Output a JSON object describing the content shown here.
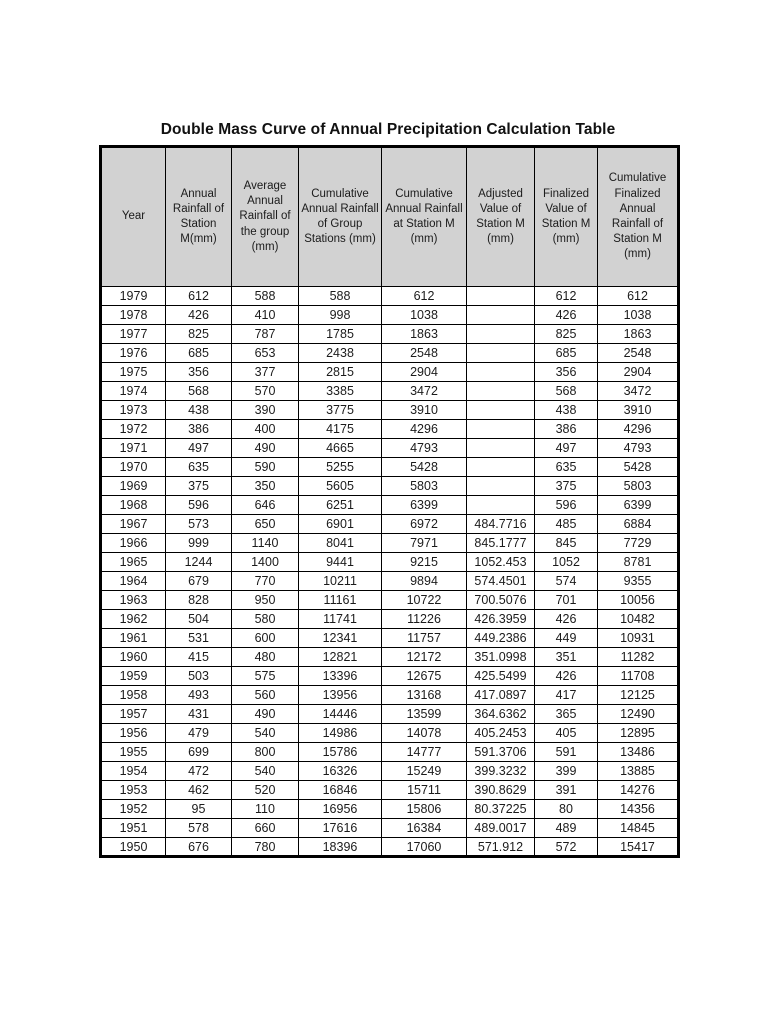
{
  "page": {
    "title": "Double Mass Curve of Annual Precipitation Calculation Table"
  },
  "colors": {
    "header_bg": "#d2d2d2",
    "border": "#000000",
    "page_bg": "#ffffff",
    "text": "#1b1b1b"
  },
  "table": {
    "headers": [
      "Year",
      "Annual Rainfall of Station M(mm)",
      "Average Annual Rainfall of the group (mm)",
      "Cumulative Annual Rainfall of Group Stations (mm)",
      "Cumulative Annual Rainfall at Station M (mm)",
      "Adjusted Value of Station M (mm)",
      "Finalized Value of Station M (mm)",
      "Cumulative Finalized Annual Rainfall of Station M (mm)"
    ],
    "rows": [
      [
        "1979",
        "612",
        "588",
        "588",
        "612",
        "",
        "612",
        "612"
      ],
      [
        "1978",
        "426",
        "410",
        "998",
        "1038",
        "",
        "426",
        "1038"
      ],
      [
        "1977",
        "825",
        "787",
        "1785",
        "1863",
        "",
        "825",
        "1863"
      ],
      [
        "1976",
        "685",
        "653",
        "2438",
        "2548",
        "",
        "685",
        "2548"
      ],
      [
        "1975",
        "356",
        "377",
        "2815",
        "2904",
        "",
        "356",
        "2904"
      ],
      [
        "1974",
        "568",
        "570",
        "3385",
        "3472",
        "",
        "568",
        "3472"
      ],
      [
        "1973",
        "438",
        "390",
        "3775",
        "3910",
        "",
        "438",
        "3910"
      ],
      [
        "1972",
        "386",
        "400",
        "4175",
        "4296",
        "",
        "386",
        "4296"
      ],
      [
        "1971",
        "497",
        "490",
        "4665",
        "4793",
        "",
        "497",
        "4793"
      ],
      [
        "1970",
        "635",
        "590",
        "5255",
        "5428",
        "",
        "635",
        "5428"
      ],
      [
        "1969",
        "375",
        "350",
        "5605",
        "5803",
        "",
        "375",
        "5803"
      ],
      [
        "1968",
        "596",
        "646",
        "6251",
        "6399",
        "",
        "596",
        "6399"
      ],
      [
        "1967",
        "573",
        "650",
        "6901",
        "6972",
        "484.7716",
        "485",
        "6884"
      ],
      [
        "1966",
        "999",
        "1140",
        "8041",
        "7971",
        "845.1777",
        "845",
        "7729"
      ],
      [
        "1965",
        "1244",
        "1400",
        "9441",
        "9215",
        "1052.453",
        "1052",
        "8781"
      ],
      [
        "1964",
        "679",
        "770",
        "10211",
        "9894",
        "574.4501",
        "574",
        "9355"
      ],
      [
        "1963",
        "828",
        "950",
        "11161",
        "10722",
        "700.5076",
        "701",
        "10056"
      ],
      [
        "1962",
        "504",
        "580",
        "11741",
        "11226",
        "426.3959",
        "426",
        "10482"
      ],
      [
        "1961",
        "531",
        "600",
        "12341",
        "11757",
        "449.2386",
        "449",
        "10931"
      ],
      [
        "1960",
        "415",
        "480",
        "12821",
        "12172",
        "351.0998",
        "351",
        "11282"
      ],
      [
        "1959",
        "503",
        "575",
        "13396",
        "12675",
        "425.5499",
        "426",
        "11708"
      ],
      [
        "1958",
        "493",
        "560",
        "13956",
        "13168",
        "417.0897",
        "417",
        "12125"
      ],
      [
        "1957",
        "431",
        "490",
        "14446",
        "13599",
        "364.6362",
        "365",
        "12490"
      ],
      [
        "1956",
        "479",
        "540",
        "14986",
        "14078",
        "405.2453",
        "405",
        "12895"
      ],
      [
        "1955",
        "699",
        "800",
        "15786",
        "14777",
        "591.3706",
        "591",
        "13486"
      ],
      [
        "1954",
        "472",
        "540",
        "16326",
        "15249",
        "399.3232",
        "399",
        "13885"
      ],
      [
        "1953",
        "462",
        "520",
        "16846",
        "15711",
        "390.8629",
        "391",
        "14276"
      ],
      [
        "1952",
        "95",
        "110",
        "16956",
        "15806",
        "80.37225",
        "80",
        "14356"
      ],
      [
        "1951",
        "578",
        "660",
        "17616",
        "16384",
        "489.0017",
        "489",
        "14845"
      ],
      [
        "1950",
        "676",
        "780",
        "18396",
        "17060",
        "571.912",
        "572",
        "15417"
      ]
    ]
  }
}
